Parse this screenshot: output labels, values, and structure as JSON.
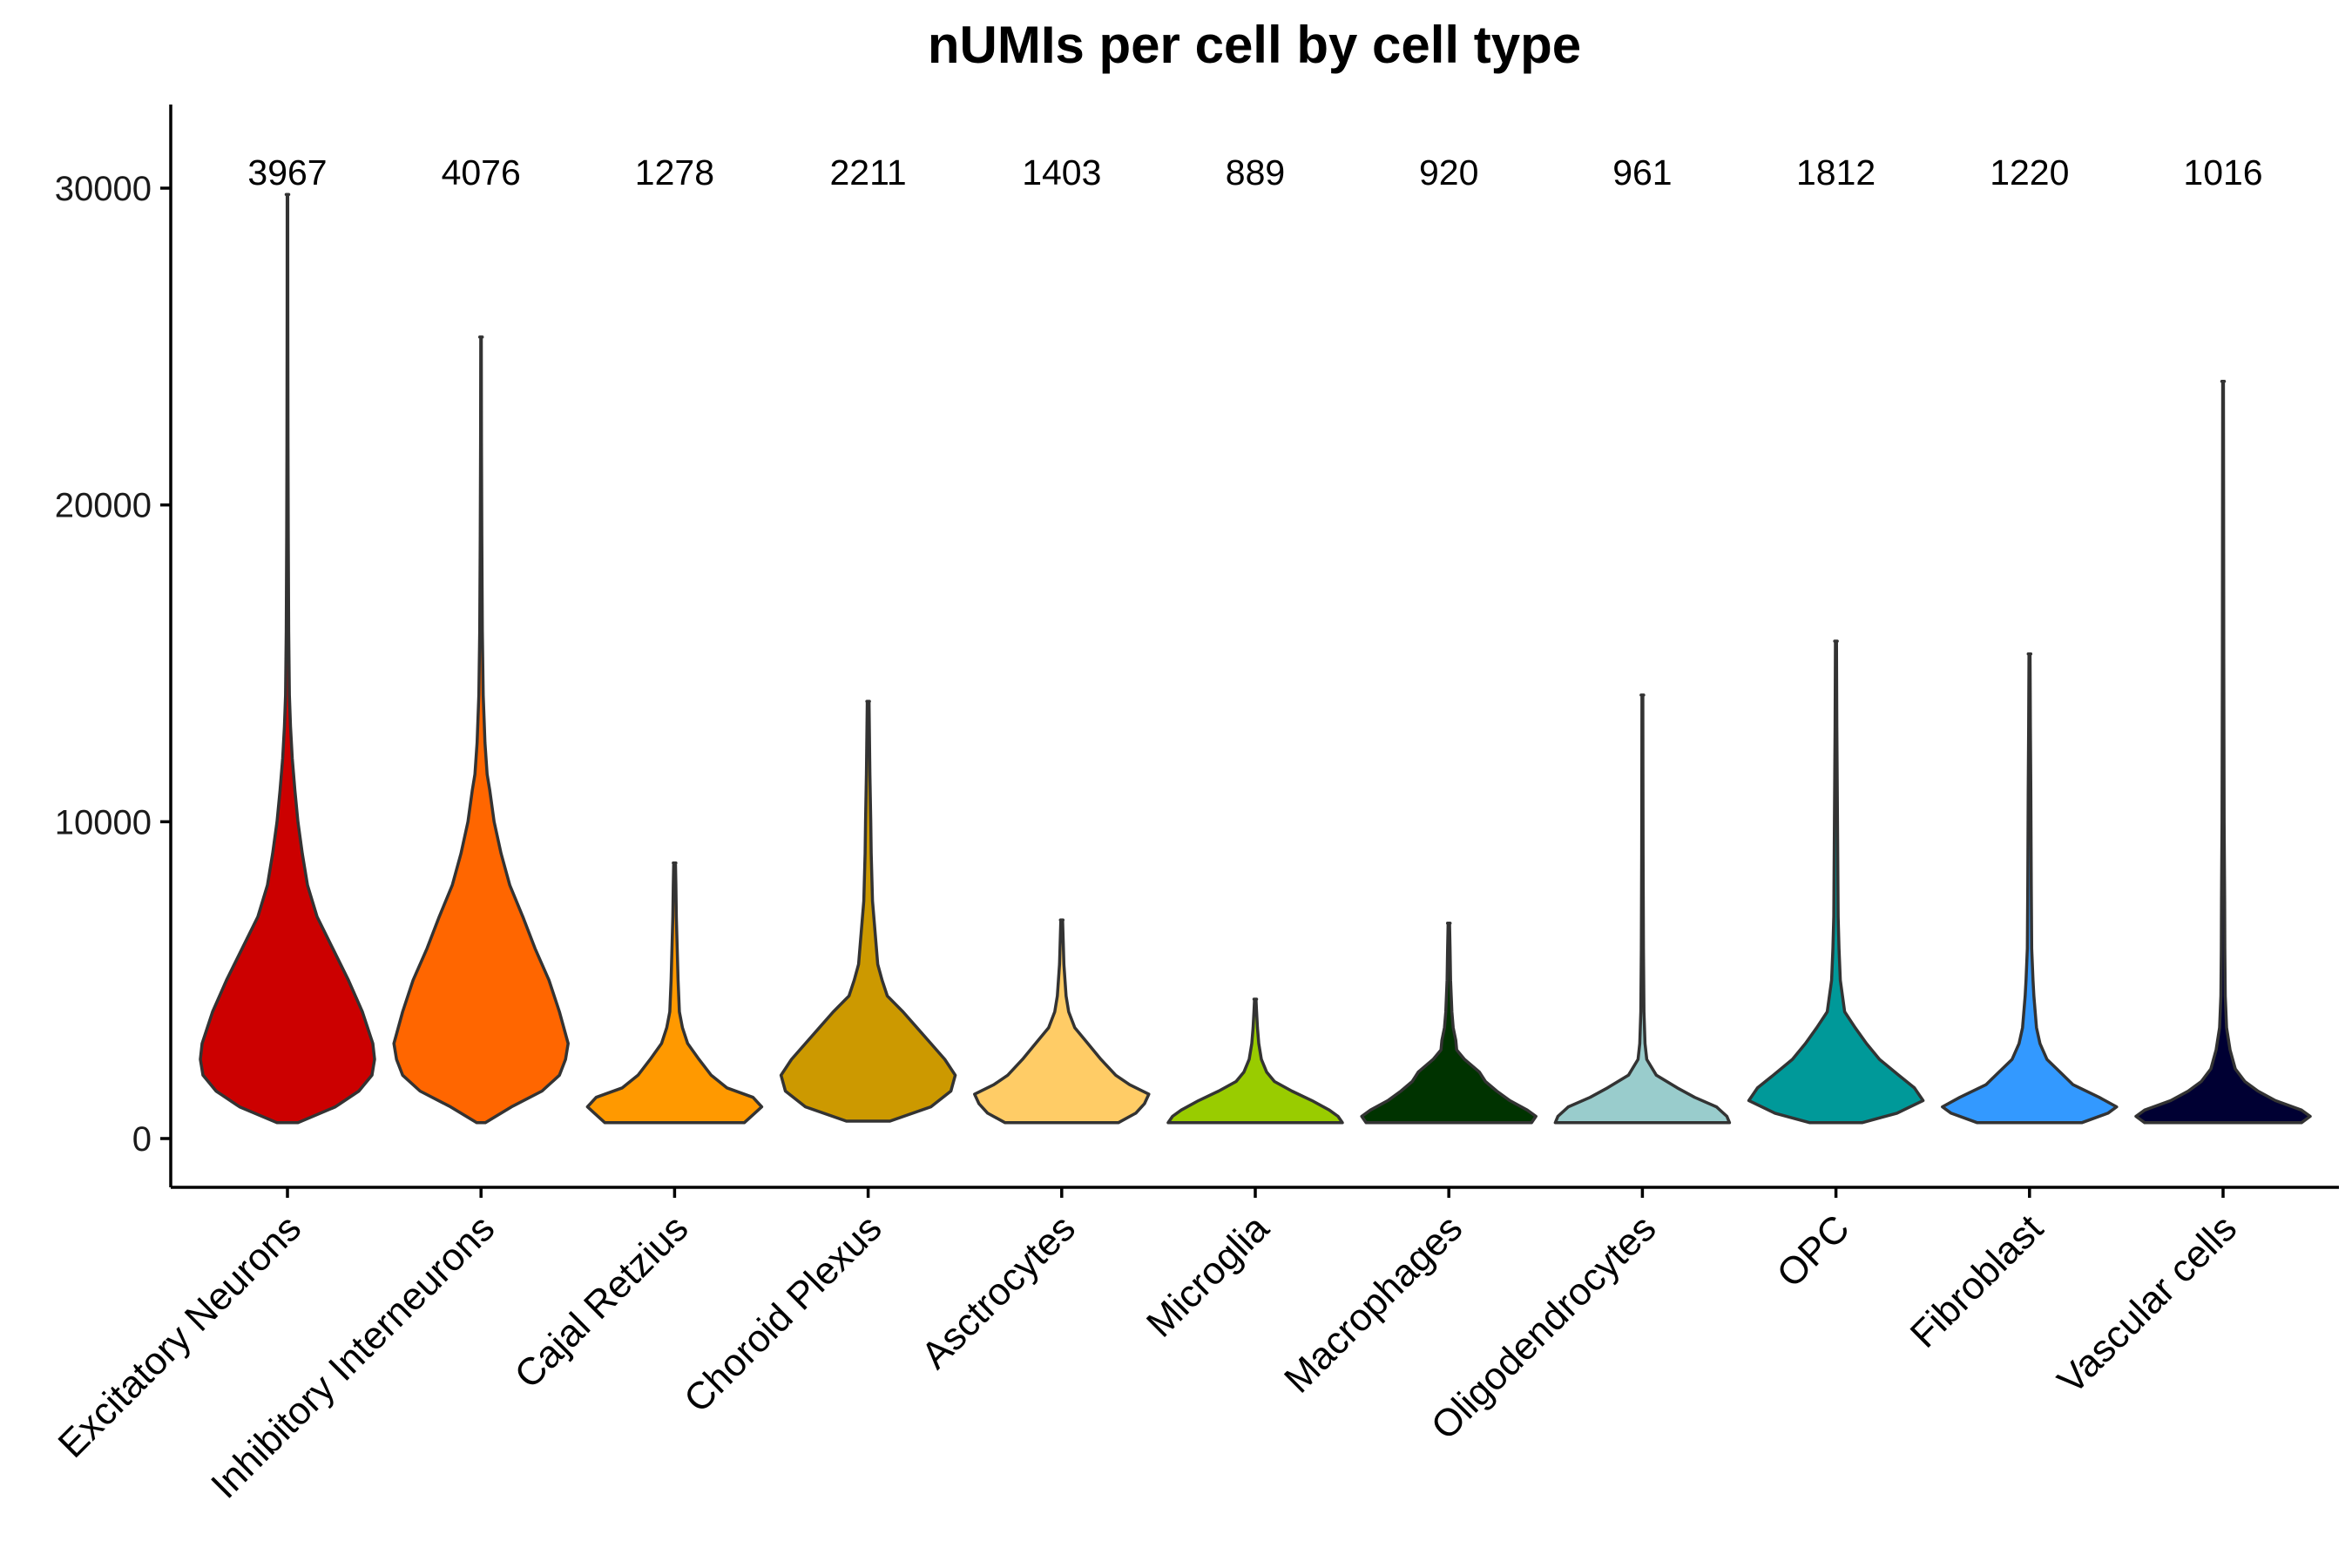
{
  "chart_data": {
    "type": "violin",
    "title": "nUMIs per cell by cell type",
    "xlabel": "",
    "ylabel": "",
    "ylim": [
      -1500,
      32500
    ],
    "yticks": [
      0,
      10000,
      20000,
      30000
    ],
    "grid": false,
    "legend": "none",
    "categories": [
      "Excitatory Neurons",
      "Inhibitory Interneurons",
      "Cajal Retzius",
      "Choroid Plexus",
      "Asctrocytes",
      "Microglia",
      "Macrophages",
      "Oligodendrocytes",
      "OPC",
      "Fibroblast",
      "Vascular cells"
    ],
    "count_labels": [
      "3967",
      "4076",
      "1278",
      "2211",
      "1403",
      "889",
      "920",
      "961",
      "1812",
      "1220",
      "1016"
    ],
    "colors": [
      "#CC0000",
      "#FF6600",
      "#FF9900",
      "#CC9900",
      "#FFCC66",
      "#99CC00",
      "#003300",
      "#99CCCC",
      "#009999",
      "#3399FF",
      "#000033"
    ],
    "series": [
      {
        "min": 500,
        "max": 29800,
        "profile": [
          [
            500,
            0.12
          ],
          [
            1000,
            0.55
          ],
          [
            1500,
            0.82
          ],
          [
            2000,
            0.97
          ],
          [
            2500,
            1.0
          ],
          [
            3000,
            0.98
          ],
          [
            4000,
            0.86
          ],
          [
            5000,
            0.7
          ],
          [
            6000,
            0.52
          ],
          [
            7000,
            0.34
          ],
          [
            8000,
            0.23
          ],
          [
            9000,
            0.17
          ],
          [
            10000,
            0.12
          ],
          [
            11000,
            0.085
          ],
          [
            12000,
            0.055
          ],
          [
            13000,
            0.035
          ],
          [
            14000,
            0.022
          ],
          [
            16000,
            0.014
          ],
          [
            19000,
            0.009
          ],
          [
            22000,
            0.006
          ],
          [
            26000,
            0.004
          ],
          [
            29800,
            0.003
          ]
        ]
      },
      {
        "min": 500,
        "max": 25300,
        "profile": [
          [
            500,
            0.05
          ],
          [
            1000,
            0.35
          ],
          [
            1500,
            0.7
          ],
          [
            2000,
            0.9
          ],
          [
            2500,
            0.97
          ],
          [
            3000,
            1.0
          ],
          [
            4000,
            0.9
          ],
          [
            5000,
            0.78
          ],
          [
            6000,
            0.62
          ],
          [
            7000,
            0.48
          ],
          [
            8000,
            0.33
          ],
          [
            9000,
            0.23
          ],
          [
            10000,
            0.15
          ],
          [
            11000,
            0.1
          ],
          [
            11500,
            0.07
          ],
          [
            12500,
            0.045
          ],
          [
            14000,
            0.025
          ],
          [
            16000,
            0.015
          ],
          [
            19000,
            0.009
          ],
          [
            22000,
            0.005
          ],
          [
            25300,
            0.003
          ]
        ]
      },
      {
        "min": 500,
        "max": 8700,
        "profile": [
          [
            500,
            0.8
          ],
          [
            800,
            0.92
          ],
          [
            1000,
            1.0
          ],
          [
            1300,
            0.9
          ],
          [
            1600,
            0.6
          ],
          [
            2000,
            0.42
          ],
          [
            2500,
            0.28
          ],
          [
            3000,
            0.15
          ],
          [
            3500,
            0.09
          ],
          [
            4000,
            0.055
          ],
          [
            5000,
            0.04
          ],
          [
            6000,
            0.03
          ],
          [
            7000,
            0.02
          ],
          [
            8000,
            0.015
          ],
          [
            8700,
            0.01
          ]
        ]
      },
      {
        "min": 550,
        "max": 13800,
        "profile": [
          [
            550,
            0.25
          ],
          [
            1000,
            0.72
          ],
          [
            1500,
            0.95
          ],
          [
            2000,
            1.0
          ],
          [
            2500,
            0.88
          ],
          [
            3000,
            0.72
          ],
          [
            3500,
            0.56
          ],
          [
            4000,
            0.4
          ],
          [
            4500,
            0.22
          ],
          [
            5000,
            0.16
          ],
          [
            5500,
            0.11
          ],
          [
            6500,
            0.08
          ],
          [
            7500,
            0.05
          ],
          [
            9000,
            0.035
          ],
          [
            10000,
            0.03
          ],
          [
            11500,
            0.02
          ],
          [
            13800,
            0.01
          ]
        ]
      },
      {
        "min": 500,
        "max": 6900,
        "profile": [
          [
            500,
            0.65
          ],
          [
            800,
            0.85
          ],
          [
            1100,
            0.95
          ],
          [
            1400,
            1.0
          ],
          [
            1700,
            0.78
          ],
          [
            2000,
            0.62
          ],
          [
            2500,
            0.45
          ],
          [
            3000,
            0.3
          ],
          [
            3500,
            0.15
          ],
          [
            4000,
            0.08
          ],
          [
            4500,
            0.05
          ],
          [
            5500,
            0.025
          ],
          [
            6900,
            0.01
          ]
        ]
      },
      {
        "min": 500,
        "max": 4400,
        "profile": [
          [
            500,
            1.0
          ],
          [
            700,
            0.95
          ],
          [
            900,
            0.85
          ],
          [
            1200,
            0.65
          ],
          [
            1500,
            0.42
          ],
          [
            1800,
            0.22
          ],
          [
            2100,
            0.13
          ],
          [
            2500,
            0.07
          ],
          [
            3000,
            0.04
          ],
          [
            3500,
            0.025
          ],
          [
            4000,
            0.015
          ],
          [
            4400,
            0.008
          ]
        ]
      },
      {
        "min": 500,
        "max": 6800,
        "profile": [
          [
            500,
            0.95
          ],
          [
            700,
            1.0
          ],
          [
            900,
            0.9
          ],
          [
            1200,
            0.7
          ],
          [
            1500,
            0.55
          ],
          [
            1800,
            0.42
          ],
          [
            2100,
            0.35
          ],
          [
            2500,
            0.18
          ],
          [
            2800,
            0.09
          ],
          [
            3100,
            0.08
          ],
          [
            3500,
            0.05
          ],
          [
            4000,
            0.035
          ],
          [
            5000,
            0.02
          ],
          [
            6000,
            0.014
          ],
          [
            6800,
            0.008
          ]
        ]
      },
      {
        "min": 500,
        "max": 14000,
        "profile": [
          [
            500,
            1.0
          ],
          [
            700,
            0.97
          ],
          [
            1000,
            0.85
          ],
          [
            1300,
            0.6
          ],
          [
            1600,
            0.4
          ],
          [
            2000,
            0.16
          ],
          [
            2500,
            0.05
          ],
          [
            3000,
            0.03
          ],
          [
            4000,
            0.018
          ],
          [
            6000,
            0.012
          ],
          [
            9000,
            0.008
          ],
          [
            12000,
            0.006
          ],
          [
            14000,
            0.005
          ]
        ]
      },
      {
        "min": 500,
        "max": 15700,
        "profile": [
          [
            500,
            0.3
          ],
          [
            800,
            0.7
          ],
          [
            1200,
            1.0
          ],
          [
            1600,
            0.9
          ],
          [
            2000,
            0.72
          ],
          [
            2500,
            0.5
          ],
          [
            3000,
            0.35
          ],
          [
            3500,
            0.22
          ],
          [
            4000,
            0.1
          ],
          [
            5000,
            0.05
          ],
          [
            6000,
            0.035
          ],
          [
            7000,
            0.025
          ],
          [
            9000,
            0.02
          ],
          [
            11000,
            0.015
          ],
          [
            13000,
            0.01
          ],
          [
            15700,
            0.006
          ]
        ]
      },
      {
        "min": 500,
        "max": 15300,
        "profile": [
          [
            500,
            0.6
          ],
          [
            800,
            0.9
          ],
          [
            1000,
            1.0
          ],
          [
            1300,
            0.8
          ],
          [
            1700,
            0.5
          ],
          [
            2100,
            0.35
          ],
          [
            2500,
            0.2
          ],
          [
            3000,
            0.12
          ],
          [
            3500,
            0.08
          ],
          [
            4500,
            0.05
          ],
          [
            5000,
            0.04
          ],
          [
            6000,
            0.025
          ],
          [
            8000,
            0.02
          ],
          [
            11000,
            0.015
          ],
          [
            13000,
            0.01
          ],
          [
            15300,
            0.006
          ]
        ]
      },
      {
        "min": 500,
        "max": 23900,
        "profile": [
          [
            500,
            0.9
          ],
          [
            700,
            1.0
          ],
          [
            900,
            0.9
          ],
          [
            1200,
            0.6
          ],
          [
            1500,
            0.4
          ],
          [
            1800,
            0.25
          ],
          [
            2200,
            0.14
          ],
          [
            2800,
            0.08
          ],
          [
            3500,
            0.04
          ],
          [
            4500,
            0.025
          ],
          [
            6000,
            0.02
          ],
          [
            7500,
            0.018
          ],
          [
            10000,
            0.012
          ],
          [
            12500,
            0.01
          ],
          [
            15000,
            0.008
          ],
          [
            20000,
            0.006
          ],
          [
            23900,
            0.004
          ]
        ]
      }
    ]
  }
}
